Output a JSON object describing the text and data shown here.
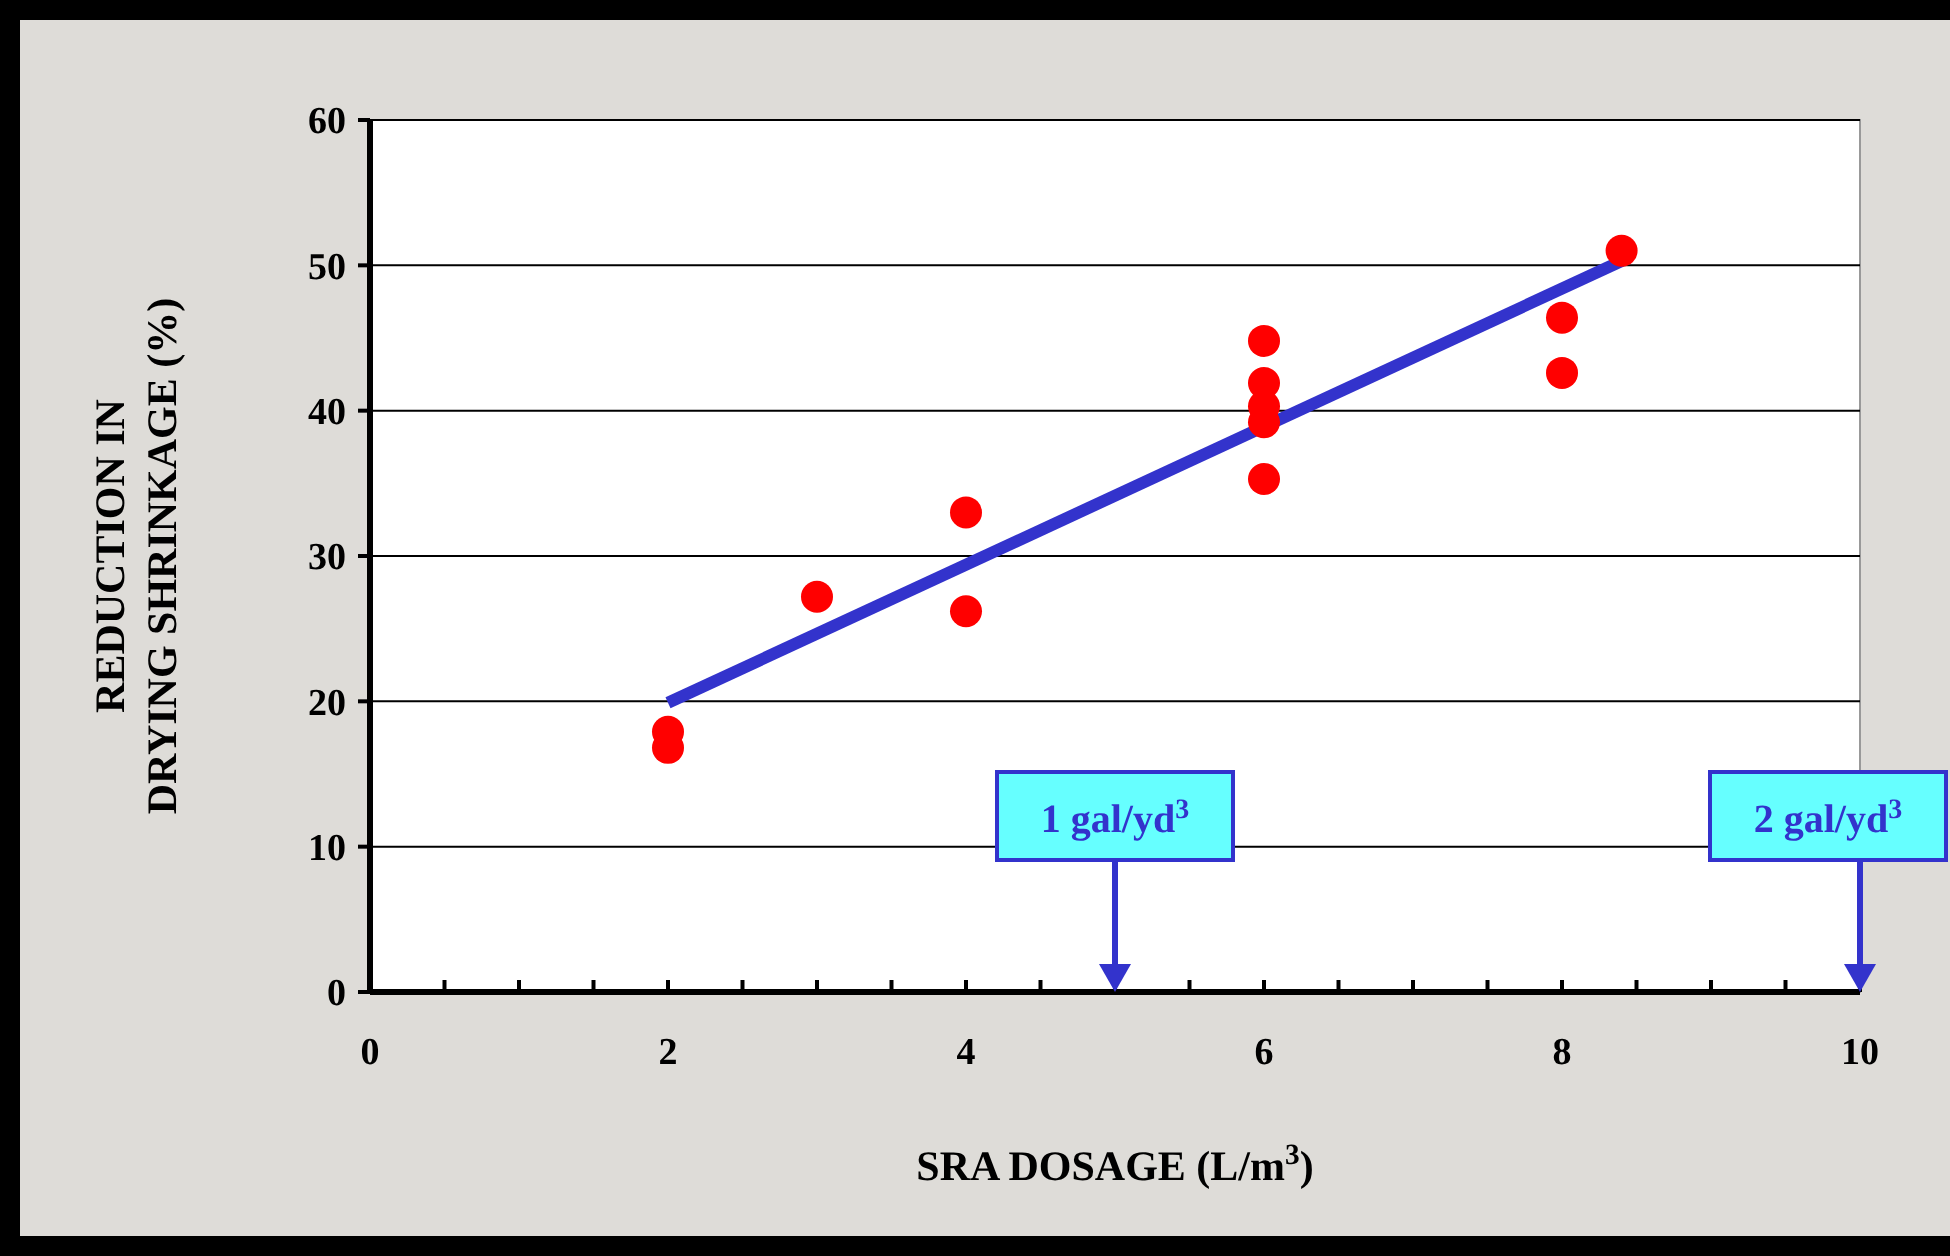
{
  "chart_data": {
    "type": "scatter",
    "xlabel": "SRA DOSAGE (L/m$^{3}$)",
    "ylabel": "REDUCTION  IN\nDRYING SHRINKAGE (%)",
    "xlim": [
      0,
      10
    ],
    "ylim": [
      0,
      60
    ],
    "xticks": [
      0,
      {
        "value": 0.5,
        "label": null
      },
      2,
      {
        "value": 1,
        "label": null
      },
      {
        "value": 1.5,
        "label": null
      },
      {
        "value": 2.5,
        "label": null
      },
      {
        "value": 3,
        "label": null
      },
      {
        "value": 3.5,
        "label": null
      },
      4,
      {
        "value": 4.5,
        "label": null
      },
      {
        "value": 5,
        "label": null
      },
      {
        "value": 5.5,
        "label": null
      },
      6,
      {
        "value": 6.5,
        "label": null
      },
      {
        "value": 7,
        "label": null
      },
      {
        "value": 7.5,
        "label": null
      },
      8,
      {
        "value": 8.5,
        "label": null
      },
      {
        "value": 9,
        "label": null
      },
      {
        "value": 9.5,
        "label": null
      },
      10
    ],
    "yticks": [
      0,
      10,
      20,
      30,
      40,
      50,
      60
    ],
    "grid": "y",
    "series": [
      {
        "marker": "circle",
        "color": "#ff0000",
        "x": [
          2,
          2,
          3,
          4,
          4,
          6,
          6,
          6,
          6,
          6,
          8,
          8,
          8.4
        ],
        "values": [
          17.9,
          16.8,
          27.2,
          33.0,
          26.2,
          44.8,
          41.9,
          40.3,
          39.2,
          35.3,
          46.4,
          42.6,
          51.0
        ]
      },
      {
        "type": "line",
        "color": "#3333cc",
        "x": [
          2,
          8.4
        ],
        "values": [
          19.9,
          50.3
        ]
      }
    ],
    "ref_lines": [
      {
        "axis": "x",
        "value": 5,
        "label": "1 gal/yd$^{3}$",
        "color": "#3333cc"
      },
      {
        "axis": "x",
        "value": 10,
        "label": "2 gal/yd$^{3}$",
        "color": "#3333cc"
      }
    ]
  }
}
